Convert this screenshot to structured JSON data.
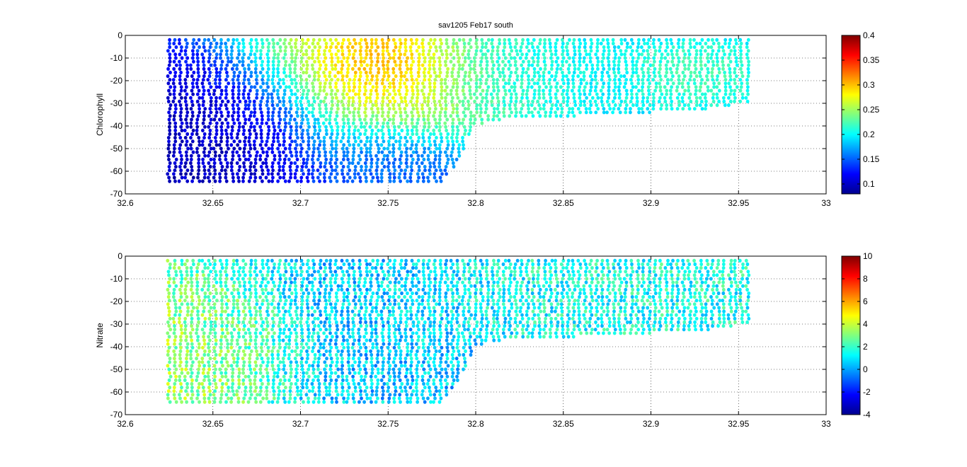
{
  "figure_title": "sav1205 Feb17 south",
  "chart_data": [
    {
      "type": "scatter",
      "title": "sav1205 Feb17 south",
      "xlabel": "",
      "ylabel": "Chlorophyll",
      "xlim": [
        32.6,
        33
      ],
      "ylim": [
        -70,
        0
      ],
      "xticks": [
        "32.6",
        "32.65",
        "32.7",
        "32.75",
        "32.8",
        "32.85",
        "32.9",
        "32.95",
        "33"
      ],
      "yticks": [
        "0",
        "-10",
        "-20",
        "-30",
        "-40",
        "-50",
        "-60",
        "-70"
      ],
      "grid": true,
      "colormap": "jet",
      "colorbar": {
        "min": 0.08,
        "max": 0.4,
        "ticks": [
          "0.1",
          "0.15",
          "0.2",
          "0.25",
          "0.3",
          "0.35",
          "0.4"
        ]
      },
      "x_start": 32.625,
      "x_end": 32.955,
      "profile_spacing": 0.0033,
      "bottom_depth": [
        [
          32.625,
          -66
        ],
        [
          32.78,
          -66
        ],
        [
          32.79,
          -55
        ],
        [
          32.8,
          -40
        ],
        [
          32.82,
          -36
        ],
        [
          32.85,
          -36
        ],
        [
          32.87,
          -35
        ],
        [
          32.9,
          -34
        ],
        [
          32.93,
          -33
        ],
        [
          32.955,
          -30
        ]
      ],
      "value_summary": [
        {
          "x": [
            32.63,
            32.7
          ],
          "depth": [
            -25,
            -65
          ],
          "value": 0.1
        },
        {
          "x": [
            32.725,
            32.76
          ],
          "depth": [
            -5,
            -25
          ],
          "value": 0.33
        },
        {
          "x": [
            32.7,
            32.79
          ],
          "depth": [
            -2,
            -45
          ],
          "value": 0.26
        },
        {
          "x": [
            32.72,
            32.78
          ],
          "depth": [
            -45,
            -65
          ],
          "value": 0.14
        },
        {
          "x": [
            32.8,
            32.86
          ],
          "depth": [
            -2,
            -35
          ],
          "value": 0.21
        },
        {
          "x": [
            32.9,
            32.94
          ],
          "depth": [
            -10,
            -25
          ],
          "value": 0.25
        },
        {
          "x": [
            32.86,
            32.955
          ],
          "depth": [
            -2,
            -35
          ],
          "value": 0.19
        }
      ]
    },
    {
      "type": "scatter",
      "title": "",
      "xlabel": "",
      "ylabel": "Nitrate",
      "xlim": [
        32.6,
        33
      ],
      "ylim": [
        -70,
        0
      ],
      "xticks": [
        "32.6",
        "32.65",
        "32.7",
        "32.75",
        "32.8",
        "32.85",
        "32.9",
        "32.95",
        "33"
      ],
      "yticks": [
        "0",
        "-10",
        "-20",
        "-30",
        "-40",
        "-50",
        "-60",
        "-70"
      ],
      "grid": true,
      "colormap": "jet",
      "colorbar": {
        "min": -4,
        "max": 10,
        "ticks": [
          "10",
          "8",
          "6",
          "4",
          "2",
          "0",
          "-2",
          "-4"
        ]
      },
      "x_start": 32.625,
      "x_end": 32.955,
      "profile_spacing": 0.0033,
      "bottom_depth": [
        [
          32.625,
          -66
        ],
        [
          32.78,
          -66
        ],
        [
          32.79,
          -55
        ],
        [
          32.8,
          -40
        ],
        [
          32.82,
          -36
        ],
        [
          32.85,
          -36
        ],
        [
          32.87,
          -35
        ],
        [
          32.9,
          -34
        ],
        [
          32.93,
          -33
        ],
        [
          32.955,
          -30
        ]
      ],
      "value_summary": [
        {
          "x": [
            32.625,
            32.68
          ],
          "depth": [
            -20,
            -65
          ],
          "value": 3.5
        },
        {
          "x": [
            32.68,
            32.79
          ],
          "depth": [
            -2,
            -65
          ],
          "value": 0.5
        },
        {
          "x": [
            32.79,
            32.955
          ],
          "depth": [
            -2,
            -36
          ],
          "value": 1.5
        }
      ]
    }
  ]
}
